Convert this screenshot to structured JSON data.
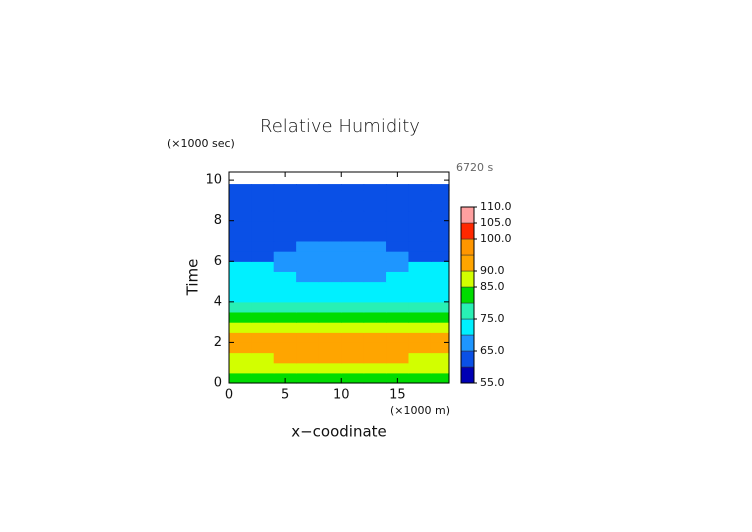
{
  "chart_data": {
    "type": "contour",
    "title": "Relative Humidity",
    "y_unit_label": "(×1000 sec)",
    "x_unit_label": "(×1000 m)",
    "time_label": "6720 s",
    "xlabel": "x−coodinate",
    "ylabel": "Time",
    "xlim": [
      0,
      19.6
    ],
    "ylim": [
      0,
      10.4
    ],
    "xticks": [
      0,
      5,
      10,
      15
    ],
    "yticks": [
      0,
      2,
      4,
      6,
      8,
      10
    ],
    "x_edges": [
      0,
      2,
      4,
      6,
      8,
      10,
      12,
      14,
      16,
      18,
      19.6
    ],
    "y_edges": [
      0,
      0.5,
      1,
      1.5,
      2,
      2.5,
      3,
      3.5,
      4,
      4.5,
      5,
      5.5,
      6,
      6.5,
      7,
      7.5,
      8,
      8.5,
      9,
      9.5,
      9.8
    ],
    "z": [
      [
        82.2,
        82.6,
        83.4,
        84.3,
        84.9,
        84.9,
        84.3,
        83.4,
        82.6,
        82.2
      ],
      [
        86.2,
        86.8,
        87.8,
        89,
        89.8,
        89.8,
        89,
        87.8,
        86.8,
        86.2
      ],
      [
        89.2,
        89.8,
        90.8,
        92,
        92.8,
        92.8,
        92,
        90.8,
        89.8,
        89.2
      ],
      [
        92.1,
        92.4,
        92.9,
        93.5,
        93.9,
        93.9,
        93.5,
        92.9,
        92.4,
        92.1
      ],
      [
        91,
        91,
        91,
        91,
        91,
        91,
        91,
        91,
        91,
        91
      ],
      [
        85.1,
        85.2,
        85.5,
        85.8,
        86,
        86,
        85.8,
        85.5,
        85.2,
        85.1
      ],
      [
        81.1,
        81.2,
        81.5,
        81.8,
        82,
        82,
        81.8,
        81.5,
        81.2,
        81.1
      ],
      [
        78,
        78,
        78,
        78,
        78,
        78,
        78,
        78,
        78,
        78
      ],
      [
        74,
        74,
        74,
        74,
        74,
        74,
        74,
        74,
        74,
        74
      ],
      [
        72.9,
        72.4,
        71.7,
        70.8,
        70.2,
        70.2,
        70.8,
        71.7,
        72.4,
        72.9
      ],
      [
        71.8,
        71.2,
        70.2,
        69,
        68.2,
        68.2,
        69,
        70.2,
        71.2,
        71.8
      ],
      [
        70.9,
        70.4,
        69.7,
        68.8,
        68.2,
        68.2,
        68.8,
        69.7,
        70.4,
        70.9
      ],
      [
        64.2,
        64.6,
        65.4,
        66.3,
        66.9,
        66.9,
        66.3,
        65.4,
        64.6,
        64.2
      ],
      [
        63.2,
        63.6,
        64.4,
        65.3,
        65.9,
        65.9,
        65.3,
        64.4,
        63.6,
        63.2
      ],
      [
        62.1,
        62.2,
        62.5,
        62.8,
        63,
        63,
        62.8,
        62.5,
        62.2,
        62.1
      ],
      [
        62,
        62,
        62,
        62,
        62,
        62,
        62,
        62,
        62,
        62
      ],
      [
        62,
        62,
        62,
        62,
        62,
        62,
        62,
        62,
        62,
        62
      ],
      [
        62,
        62,
        62,
        62,
        62,
        62,
        62,
        62,
        62,
        62
      ],
      [
        62,
        62,
        62,
        62,
        62,
        62,
        62,
        62,
        62,
        62
      ],
      [
        62,
        62,
        62,
        62,
        62,
        62,
        62,
        62,
        62,
        62
      ]
    ],
    "levels": [
      55,
      60,
      65,
      70,
      75,
      80,
      85,
      90,
      95,
      100,
      105,
      110
    ],
    "colors": [
      "#0000b4",
      "#0a50e6",
      "#1e96ff",
      "#00f0ff",
      "#28f0b4",
      "#00dc00",
      "#d2ff00",
      "#ffa500",
      "#ff9600",
      "#ff2800",
      "#ffa0a0"
    ],
    "colorbar_ticks": [
      {
        "value": 55,
        "label": "55.0"
      },
      {
        "value": 65,
        "label": "65.0"
      },
      {
        "value": 75,
        "label": "75.0"
      },
      {
        "value": 85,
        "label": "85.0"
      },
      {
        "value": 90,
        "label": "90.0"
      },
      {
        "value": 100,
        "label": "100.0"
      },
      {
        "value": 105,
        "label": "105.0"
      },
      {
        "value": 110,
        "label": "110.0"
      }
    ]
  }
}
